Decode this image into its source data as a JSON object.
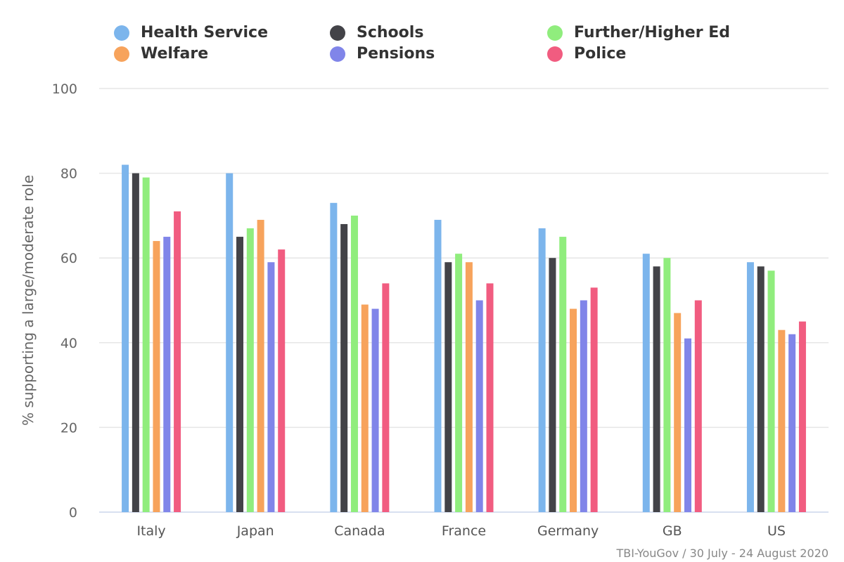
{
  "chart_data": {
    "type": "bar",
    "title": "",
    "xlabel": "",
    "ylabel": "% supporting a large/moderate role",
    "ylim": [
      0,
      100
    ],
    "yticks": [
      0,
      20,
      40,
      60,
      80,
      100
    ],
    "grid": true,
    "legend_position": "top",
    "categories": [
      "Italy",
      "Japan",
      "Canada",
      "France",
      "Germany",
      "GB",
      "US"
    ],
    "series": [
      {
        "name": "Health Service",
        "color": "#7cb5ec",
        "values": [
          82,
          80,
          73,
          69,
          67,
          61,
          59
        ]
      },
      {
        "name": "Schools",
        "color": "#434348",
        "values": [
          80,
          65,
          68,
          59,
          60,
          58,
          58
        ]
      },
      {
        "name": "Further/Higher Ed",
        "color": "#90ed7d",
        "values": [
          79,
          67,
          70,
          61,
          65,
          60,
          57
        ]
      },
      {
        "name": "Welfare",
        "color": "#f7a35c",
        "values": [
          64,
          69,
          49,
          59,
          48,
          47,
          43
        ]
      },
      {
        "name": "Pensions",
        "color": "#8085e9",
        "values": [
          65,
          59,
          48,
          50,
          50,
          41,
          42
        ]
      },
      {
        "name": "Police",
        "color": "#f15c80",
        "values": [
          71,
          62,
          54,
          54,
          53,
          50,
          45
        ]
      }
    ],
    "credit": "TBI-YouGov / 30 July - 24 August 2020"
  }
}
